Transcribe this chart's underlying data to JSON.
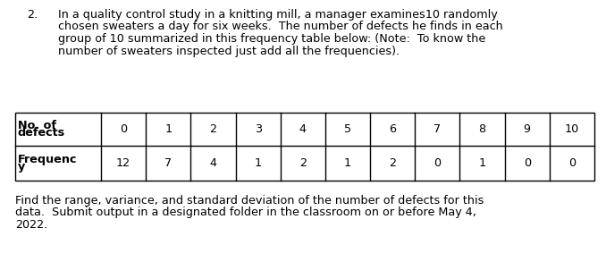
{
  "item_number": "2.",
  "paragraph_line1": "In a quality control study in a knitting mill, a manager examines10 randomly",
  "paragraph_line2": "chosen sweaters a day for six weeks.  The number of defects he finds in each",
  "paragraph_line3": "group of 10 summarized in this frequency table below: (Note:  To know the",
  "paragraph_line4": "number of sweaters inspected just add all the frequencies).",
  "row1_header_line1": "No. of",
  "row1_header_line2": "defects",
  "row2_header_line1": "Frequenc",
  "row2_header_line2": "y",
  "col_values": [
    "0",
    "1",
    "2",
    "3",
    "4",
    "5",
    "6",
    "7",
    "8",
    "9",
    "10"
  ],
  "freq_values": [
    "12",
    "7",
    "4",
    "1",
    "2",
    "1",
    "2",
    "0",
    "1",
    "0",
    "0"
  ],
  "footer_line1": "Find the range, variance, and standard deviation of the number of defects for this",
  "footer_line2": "data.  Submit output in a designated folder in the classroom on or before May 4,",
  "footer_line3": "2022.",
  "bg_color": "#ffffff",
  "text_color": "#000000",
  "font_size": 9.2,
  "table_font_size": 9.2,
  "border_color": "#000000"
}
